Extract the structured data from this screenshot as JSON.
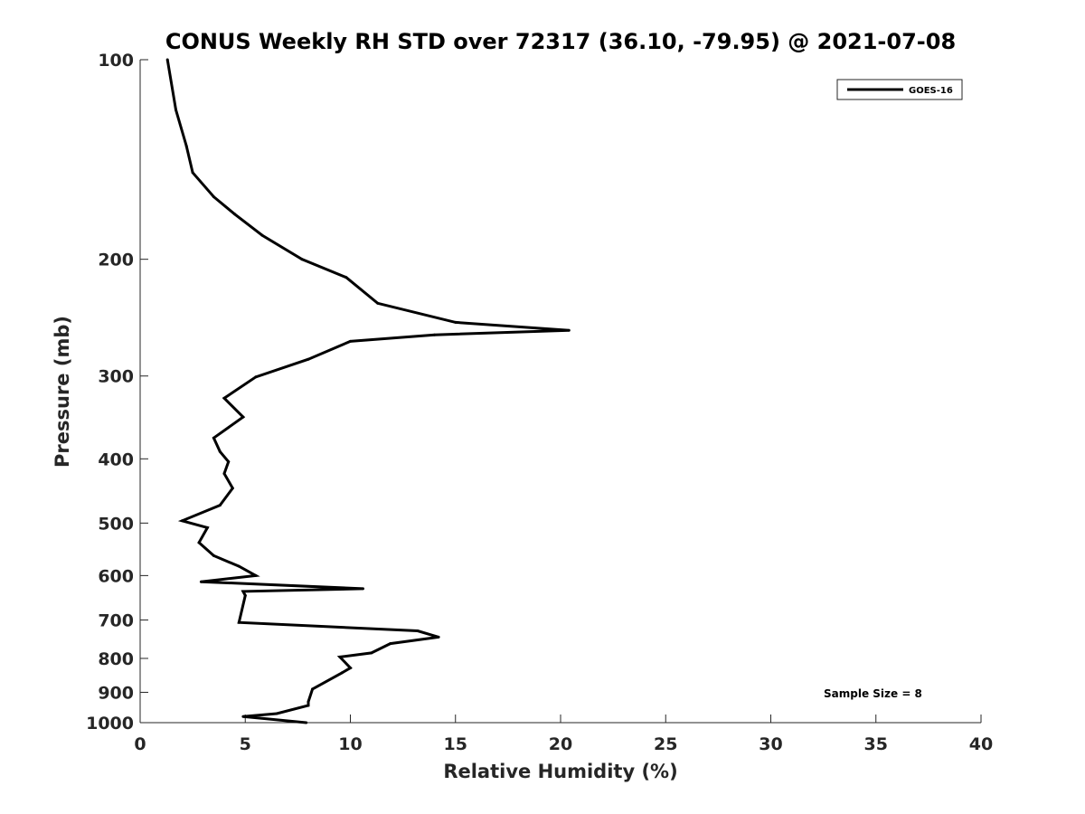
{
  "chart_data": {
    "type": "line",
    "title": "CONUS Weekly RH STD over 72317 (36.10, -79.95) @ 2021-07-08",
    "xlabel": "Relative Humidity (%)",
    "ylabel": "Pressure (mb)",
    "xlim": [
      0,
      40
    ],
    "ylim": [
      1000,
      100
    ],
    "y_scale": "log",
    "y_reversed": true,
    "x_ticks": [
      0,
      5,
      10,
      15,
      20,
      25,
      30,
      35,
      40
    ],
    "x_tick_labels": [
      "0",
      "5",
      "10",
      "15",
      "20",
      "25",
      "30",
      "35",
      "40"
    ],
    "y_ticks": [
      100,
      200,
      300,
      400,
      500,
      600,
      700,
      800,
      900,
      1000
    ],
    "y_tick_labels": [
      "100",
      "200",
      "300",
      "400",
      "500",
      "600",
      "700",
      "800",
      "900",
      "1000"
    ],
    "grid": false,
    "legend": {
      "position": "top-right",
      "entries": [
        "GOES-16"
      ]
    },
    "annotation": "Sample Size = 8",
    "series": [
      {
        "name": "GOES-16",
        "color": "#000000",
        "x": [
          1.3,
          1.7,
          2.2,
          2.5,
          3.5,
          4.5,
          5.8,
          7.7,
          9.8,
          11.3,
          15.0,
          20.4,
          14.0,
          10.0,
          8.0,
          5.5,
          4.0,
          4.9,
          3.5,
          3.8,
          4.2,
          4.0,
          4.4,
          3.8,
          2.0,
          3.2,
          2.8,
          3.5,
          4.7,
          5.5,
          2.9,
          10.6,
          4.9,
          5.0,
          4.7,
          13.2,
          14.2,
          11.9,
          11.0,
          9.5,
          10.0,
          9.6,
          8.2,
          8.0,
          8.0,
          6.5,
          4.9,
          7.9
        ],
        "y": [
          100,
          119,
          135,
          148,
          161,
          171,
          184,
          200,
          213,
          233,
          249,
          256,
          260,
          266,
          283,
          301,
          324,
          346,
          372,
          390,
          404,
          421,
          443,
          470,
          496,
          508,
          535,
          560,
          581,
          600,
          613,
          628,
          634,
          643,
          706,
          727,
          743,
          760,
          785,
          796,
          827,
          841,
          890,
          930,
          942,
          969,
          979,
          1000
        ]
      }
    ]
  }
}
